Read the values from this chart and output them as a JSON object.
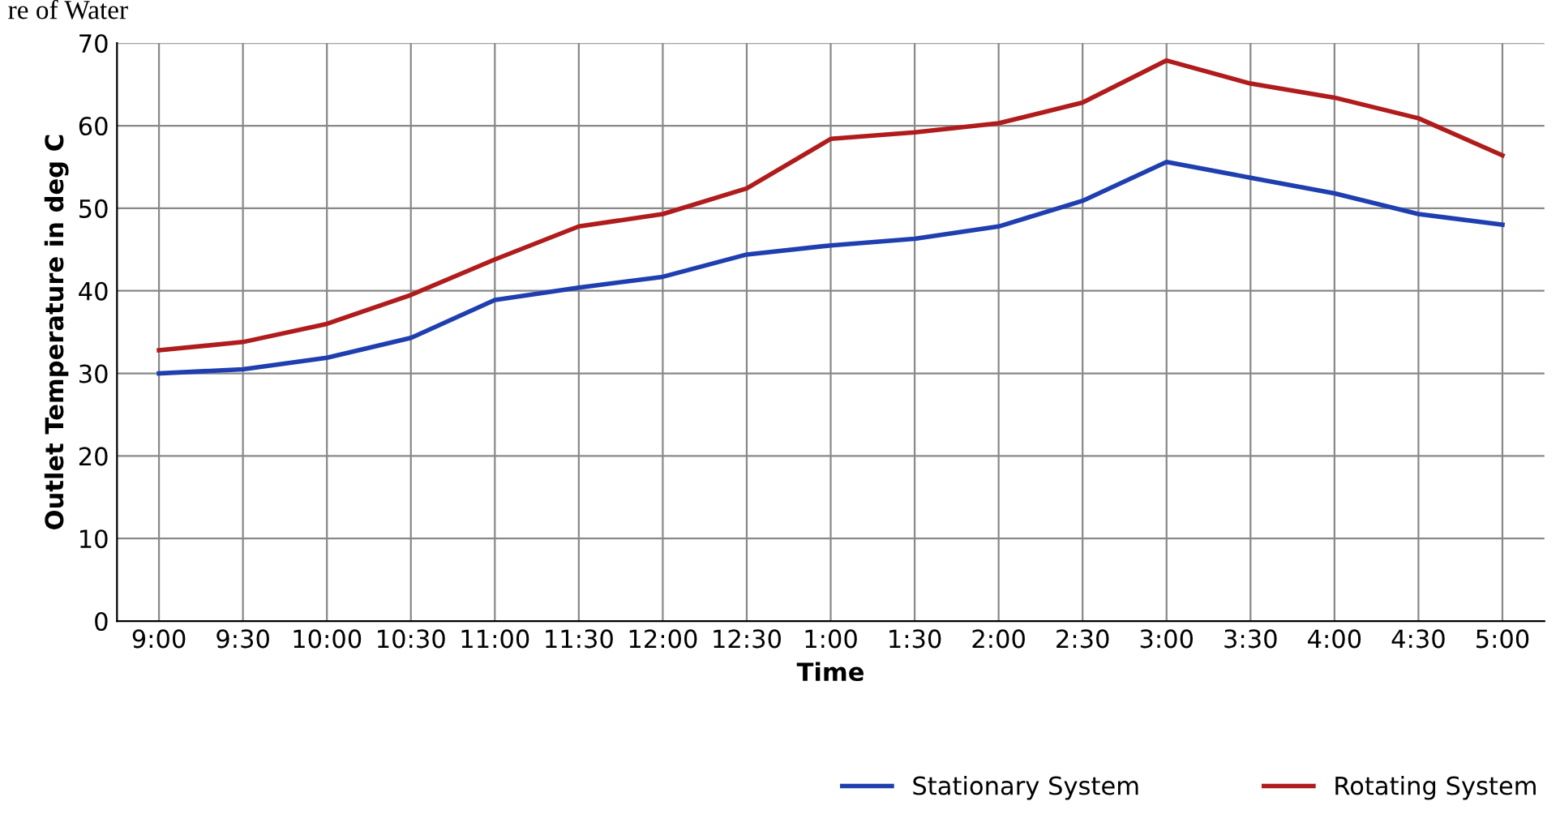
{
  "chart_data": {
    "type": "line",
    "title": "re of Water",
    "xlabel": "Time",
    "ylabel": "Outlet Temperature in deg C",
    "categories": [
      "9:00",
      "9:30",
      "10:00",
      "10:30",
      "11:00",
      "11:30",
      "12:00",
      "12:30",
      "1:00",
      "1:30",
      "2:00",
      "2:30",
      "3:00",
      "3:30",
      "4:00",
      "4:30",
      "5:00"
    ],
    "series": [
      {
        "name": "Stationary System",
        "color": "#1f3fb0",
        "values": [
          30.0,
          30.5,
          31.9,
          34.3,
          38.9,
          40.4,
          41.7,
          44.4,
          45.5,
          46.3,
          47.8,
          50.9,
          55.6,
          53.7,
          51.8,
          49.3,
          48.0
        ]
      },
      {
        "name": "Rotating System",
        "color": "#b01c1c",
        "values": [
          32.8,
          33.8,
          36.0,
          39.5,
          43.8,
          47.8,
          49.3,
          52.4,
          58.4,
          59.2,
          60.3,
          62.8,
          67.9,
          65.1,
          63.4,
          60.9,
          56.4
        ]
      }
    ],
    "ylim": [
      0,
      70
    ],
    "yticks": [
      0,
      10,
      20,
      30,
      40,
      50,
      60,
      70
    ],
    "grid": true,
    "legend": "bottom right",
    "marker": "none",
    "line_style": "solid"
  }
}
